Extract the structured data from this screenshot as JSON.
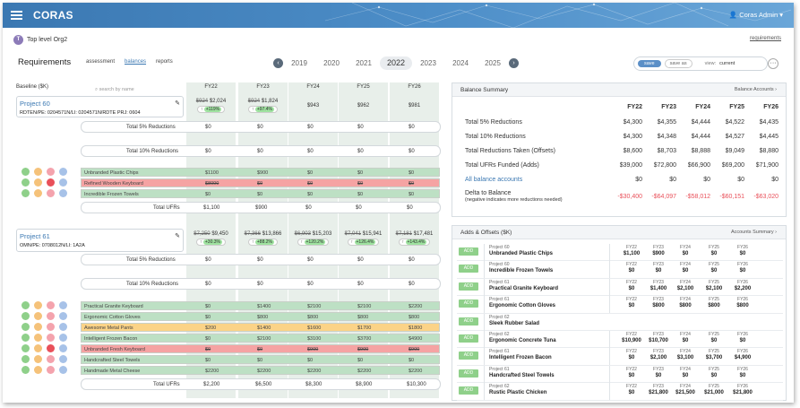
{
  "app": {
    "logo": "CORAS",
    "user": "Coras Admin",
    "org": "Top level Org2",
    "org_initial": "T",
    "requirements_link": "requirements"
  },
  "page": {
    "title": "Requirements",
    "tabs": [
      "assessment",
      "balances",
      "reports"
    ],
    "active_tab": "balances"
  },
  "years": [
    "2019",
    "2020",
    "2021",
    "2022",
    "2023",
    "2024",
    "2025"
  ],
  "current_year": "2022",
  "controls": {
    "save": "save",
    "save_as": "save as",
    "view_label": "view:",
    "view_value": "current"
  },
  "grid": {
    "baseline_label": "Baseline ($K)",
    "search_placeholder": "search by name",
    "fy": [
      "FY22",
      "FY23",
      "FY24",
      "FY25",
      "FY26"
    ]
  },
  "projects": [
    {
      "name": "Project 60",
      "sub": "RDTEN/PE: 0204571N/LI: 0204571N/RDTE PRJ: 0604",
      "vals": [
        {
          "old": "$924",
          "new": "$2,024",
          "pct": "+119%"
        },
        {
          "old": "$924",
          "new": "$1,824",
          "pct": "+97.4%"
        },
        {
          "new": "$943"
        },
        {
          "new": "$962"
        },
        {
          "new": "$981"
        }
      ],
      "reductions5": [
        "$0",
        "$0",
        "$0",
        "$0",
        "$0"
      ],
      "reductions10": [
        "$0",
        "$0",
        "$0",
        "$0",
        "$0"
      ],
      "items": [
        {
          "name": "Unbranded Plastic Chips",
          "vals": [
            "$1100",
            "$900",
            "$0",
            "$0",
            "$0"
          ],
          "c": "g"
        },
        {
          "name": "Refined Wooden Keyboard",
          "vals": [
            "$8000",
            "$0",
            "$0",
            "$0",
            "$0"
          ],
          "c": "r"
        },
        {
          "name": "Incredible Frozen Towels",
          "vals": [
            "$0",
            "$0",
            "$0",
            "$0",
            "$0"
          ],
          "c": "g"
        }
      ],
      "ufrs": [
        "$1,100",
        "$900",
        "$0",
        "$0",
        "$0"
      ]
    },
    {
      "name": "Project 61",
      "sub": "OMN/PE: 0708012N/LI: 1A2A",
      "vals": [
        {
          "old": "$7,250",
          "new": "$9,450",
          "pct": "+30.3%"
        },
        {
          "old": "$7,366",
          "new": "$13,866",
          "pct": "+88.2%"
        },
        {
          "old": "$6,903",
          "new": "$15,203",
          "pct": "+120.2%"
        },
        {
          "old": "$7,041",
          "new": "$15,941",
          "pct": "+126.4%"
        },
        {
          "old": "$7,181",
          "new": "$17,481",
          "pct": "+143.4%"
        }
      ],
      "reductions5": [
        "$0",
        "$0",
        "$0",
        "$0",
        "$0"
      ],
      "reductions10": [
        "$0",
        "$0",
        "$0",
        "$0",
        "$0"
      ],
      "items": [
        {
          "name": "Practical Granite Keyboard",
          "vals": [
            "$0",
            "$1400",
            "$2100",
            "$2100",
            "$2200"
          ],
          "c": "g"
        },
        {
          "name": "Ergonomic Cotton Gloves",
          "vals": [
            "$0",
            "$800",
            "$800",
            "$800",
            "$800"
          ],
          "c": "g"
        },
        {
          "name": "Awesome Metal Pants",
          "vals": [
            "$200",
            "$1400",
            "$1600",
            "$1700",
            "$1800"
          ],
          "c": "y"
        },
        {
          "name": "Intelligent Frozen Bacon",
          "vals": [
            "$0",
            "$2100",
            "$3100",
            "$3700",
            "$4900"
          ],
          "c": "g"
        },
        {
          "name": "Unbranded Fresh Keyboard",
          "vals": [
            "$0",
            "$0",
            "$900",
            "$900",
            "$900"
          ],
          "c": "r"
        },
        {
          "name": "Handcrafted Steel Towels",
          "vals": [
            "$0",
            "$0",
            "$0",
            "$0",
            "$0"
          ],
          "c": "g"
        },
        {
          "name": "Handmade Metal Cheese",
          "vals": [
            "$2200",
            "$2200",
            "$2200",
            "$2200",
            "$2200"
          ],
          "c": "g"
        }
      ],
      "ufrs": [
        "$2,200",
        "$6,500",
        "$8,300",
        "$8,900",
        "$10,300"
      ]
    }
  ],
  "row_labels": {
    "r5": "Total 5% Reductions",
    "r10": "Total 10% Reductions",
    "ufr": "Total UFRs"
  },
  "balance": {
    "title": "Balance Summary",
    "link": "Balance Accounts",
    "fy": [
      "FY22",
      "FY23",
      "FY24",
      "FY25",
      "FY26"
    ],
    "rows": [
      {
        "label": "Total 5% Reductions",
        "v": [
          "$4,300",
          "$4,355",
          "$4,444",
          "$4,522",
          "$4,435"
        ]
      },
      {
        "label": "Total 10% Reductions",
        "v": [
          "$4,300",
          "$4,348",
          "$4,444",
          "$4,527",
          "$4,445"
        ]
      },
      {
        "label": "Total Reductions Taken (Offsets)",
        "v": [
          "$8,600",
          "$8,703",
          "$8,888",
          "$9,049",
          "$8,880"
        ]
      },
      {
        "label": "Total UFRs Funded (Adds)",
        "v": [
          "$39,000",
          "$72,800",
          "$66,900",
          "$69,200",
          "$71,900"
        ]
      },
      {
        "label": "All balance accounts",
        "v": [
          "$0",
          "$0",
          "$0",
          "$0",
          "$0"
        ]
      },
      {
        "label": "Delta to Balance",
        "note": "(negative indicates more reductions needed)",
        "v": [
          "-$30,400",
          "-$64,097",
          "-$58,012",
          "-$60,151",
          "-$63,020"
        ]
      }
    ]
  },
  "adds": {
    "title": "Adds & Offsets ($K)",
    "link": "Accounts Summary",
    "btn": "ADD",
    "rows": [
      {
        "p": "Project 60",
        "i": "Unbranded Plastic Chips",
        "v": [
          "$1,100",
          "$900",
          "$0",
          "$0",
          "$0"
        ]
      },
      {
        "p": "Project 60",
        "i": "Incredible Frozen Towels",
        "v": [
          "$0",
          "$0",
          "$0",
          "$0",
          "$0"
        ]
      },
      {
        "p": "Project 61",
        "i": "Practical Granite Keyboard",
        "v": [
          "$0",
          "$1,400",
          "$2,100",
          "$2,100",
          "$2,200"
        ]
      },
      {
        "p": "Project 61",
        "i": "Ergonomic Cotton Gloves",
        "v": [
          "$0",
          "$800",
          "$800",
          "$800",
          "$800"
        ]
      },
      {
        "p": "Project 62",
        "i": "Sleek Rubber Salad",
        "v": []
      },
      {
        "p": "Project 62",
        "i": "Ergonomic Concrete Tuna",
        "v": [
          "$10,900",
          "$10,700",
          "$0",
          "$0",
          "$0"
        ]
      },
      {
        "p": "Project 61",
        "i": "Intelligent Frozen Bacon",
        "v": [
          "$0",
          "$2,100",
          "$3,100",
          "$3,700",
          "$4,900"
        ]
      },
      {
        "p": "Project 61",
        "i": "Handcrafted Steel Towels",
        "v": [
          "$0",
          "$0",
          "$0",
          "$0",
          "$0"
        ]
      },
      {
        "p": "Project 62",
        "i": "Rustic Plastic Chicken",
        "v": [
          "$0",
          "$21,800",
          "$21,500",
          "$21,000",
          "$21,800"
        ]
      }
    ]
  }
}
